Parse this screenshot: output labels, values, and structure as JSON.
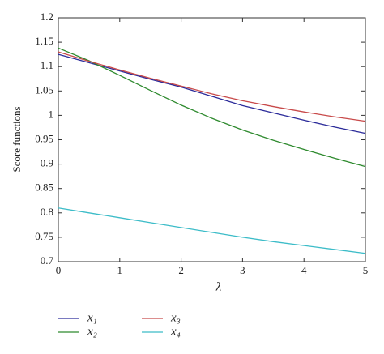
{
  "chart_data": {
    "type": "line",
    "x_label": "λ",
    "y_label": "Score functions",
    "x": [
      0,
      0.5,
      1,
      1.5,
      2,
      2.5,
      3,
      3.5,
      4,
      4.5,
      5
    ],
    "series": [
      {
        "name": "x₁",
        "color": "#2b2b9a",
        "values": [
          1.125,
          1.108,
          1.091,
          1.074,
          1.058,
          1.039,
          1.02,
          1.005,
          0.99,
          0.976,
          0.963
        ]
      },
      {
        "name": "x₂",
        "color": "#2e8a2e",
        "values": [
          1.138,
          1.112,
          1.082,
          1.051,
          1.021,
          0.994,
          0.97,
          0.949,
          0.93,
          0.912,
          0.895
        ]
      },
      {
        "name": "x₃",
        "color": "#c84a4a",
        "values": [
          1.13,
          1.111,
          1.093,
          1.076,
          1.06,
          1.044,
          1.03,
          1.018,
          1.007,
          0.997,
          0.988
        ]
      },
      {
        "name": "x₄",
        "color": "#3cbcc8",
        "values": [
          0.81,
          0.8,
          0.79,
          0.78,
          0.77,
          0.76,
          0.75,
          0.741,
          0.733,
          0.725,
          0.717
        ]
      }
    ],
    "xlim": [
      0,
      5
    ],
    "xticks": [
      0,
      1,
      2,
      3,
      4,
      5
    ],
    "ylim": [
      0.7,
      1.2
    ],
    "yticks": [
      0.7,
      0.75,
      0.8,
      0.85,
      0.9,
      0.95,
      1,
      1.05,
      1.1,
      1.15,
      1.2
    ]
  }
}
